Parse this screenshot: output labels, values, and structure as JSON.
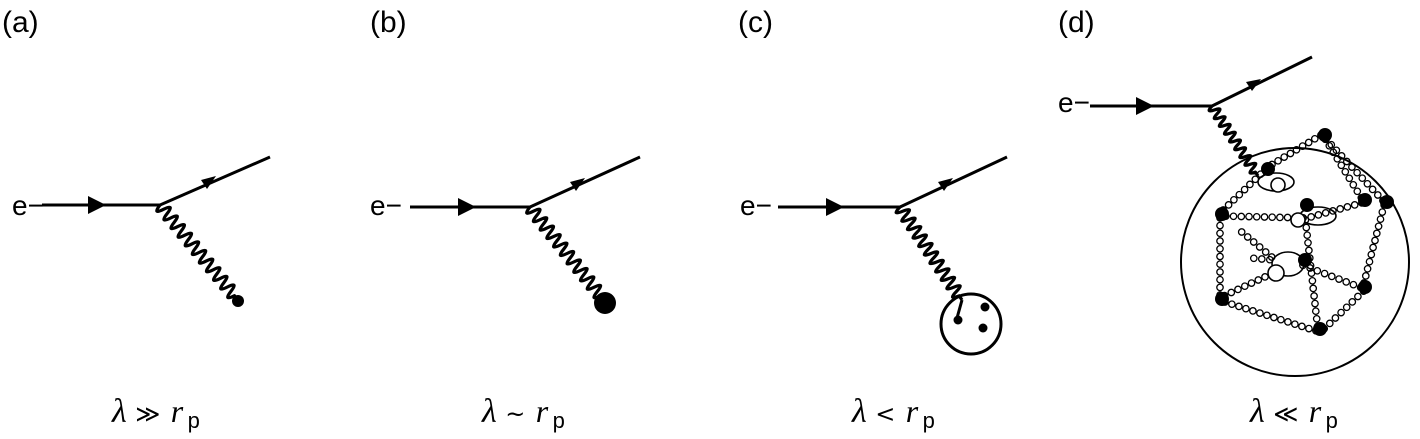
{
  "panels": [
    {
      "label": "(a)",
      "particle": "e−",
      "lambda": "λ",
      "relation": "≫",
      "r": "r",
      "sub": "p"
    },
    {
      "label": "(b)",
      "particle": "e−",
      "lambda": "λ",
      "relation": "~",
      "r": "r",
      "sub": "p"
    },
    {
      "label": "(c)",
      "particle": "e−",
      "lambda": "λ",
      "relation": "<",
      "r": "r",
      "sub": "p"
    },
    {
      "label": "(d)",
      "particle": "e−",
      "lambda": "λ",
      "relation": "≪",
      "r": "r",
      "sub": "p"
    }
  ]
}
